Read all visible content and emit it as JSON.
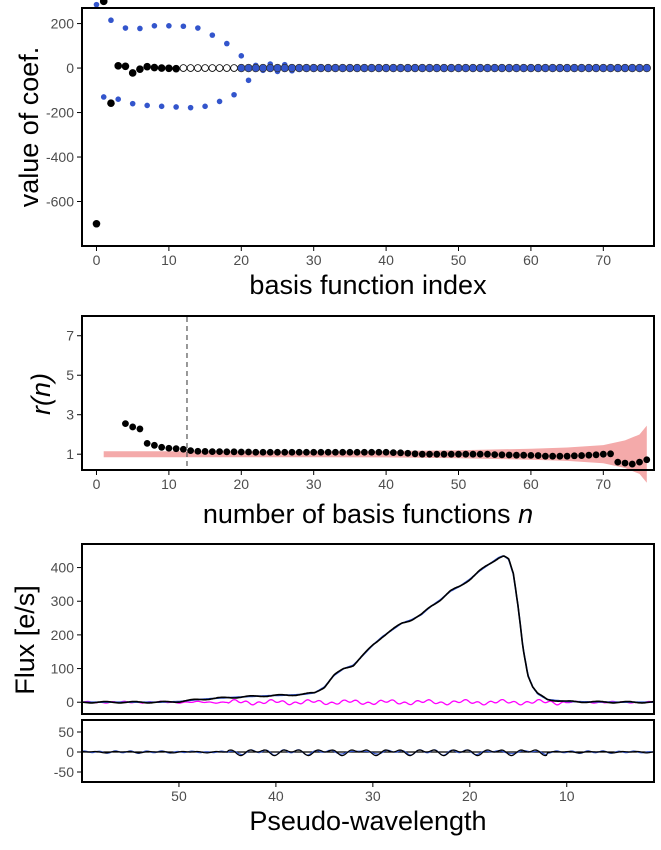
{
  "chart_data": [
    {
      "type": "scatter",
      "xlabel": "basis function index",
      "ylabel": "value of coef.",
      "xlim": [
        -2,
        77
      ],
      "ylim": [
        -800,
        270
      ],
      "xticks": [
        "0",
        "10",
        "20",
        "30",
        "40",
        "50",
        "60",
        "70"
      ],
      "yticks": [
        "200",
        "0",
        "-200",
        "-400",
        "-600"
      ],
      "colors": {
        "black": "#000000",
        "blue": "#3355cc",
        "open": "#ffffff"
      },
      "series": [
        {
          "style": "black",
          "x": [
            0,
            1,
            2,
            3,
            4,
            5,
            6,
            7,
            8,
            9,
            10,
            11
          ],
          "y": [
            -700,
            300,
            -158,
            10,
            8,
            -22,
            -5,
            6,
            2,
            0,
            -1,
            -3
          ]
        },
        {
          "style": "blue_small",
          "x": [
            0,
            2,
            4,
            6,
            8,
            10,
            12,
            14,
            16,
            18,
            20,
            22,
            24,
            26
          ],
          "y": [
            285,
            215,
            180,
            178,
            190,
            190,
            188,
            180,
            148,
            110,
            55,
            12,
            18,
            15
          ]
        },
        {
          "style": "blue_small",
          "x": [
            1,
            3,
            5,
            7,
            9,
            11,
            13,
            15,
            17,
            19,
            21,
            23,
            25,
            27
          ],
          "y": [
            -130,
            -140,
            -160,
            -168,
            -172,
            -175,
            -178,
            -172,
            -150,
            -120,
            -55,
            -10,
            -15,
            -12
          ]
        },
        {
          "style": "open",
          "x": [
            12,
            13,
            14,
            15,
            16,
            17,
            18,
            19,
            20,
            21,
            22,
            23,
            24,
            25,
            26,
            27,
            28,
            29
          ],
          "y": [
            0,
            0,
            0,
            0,
            0,
            0,
            0,
            0,
            0,
            0,
            0,
            0,
            0,
            0,
            0,
            0,
            0,
            0
          ]
        },
        {
          "style": "blue_outline",
          "x_start": 20,
          "x_end": 76,
          "y_const": 0
        }
      ]
    },
    {
      "type": "scatter",
      "xlabel": "number of basis functions",
      "xlabel_italic": "n",
      "ylabel": "r(n)",
      "xlim": [
        -2,
        77
      ],
      "ylim": [
        0.2,
        8
      ],
      "xticks": [
        "0",
        "10",
        "20",
        "30",
        "40",
        "50",
        "60",
        "70"
      ],
      "yticks": [
        "7",
        "5",
        "3",
        "1"
      ],
      "vline_x": 12.5,
      "band_color": "#f4aaaa",
      "band": {
        "x": [
          1,
          10,
          30,
          40,
          50,
          60,
          65,
          70,
          73,
          75,
          76
        ],
        "half_width": [
          0.15,
          0.15,
          0.15,
          0.16,
          0.2,
          0.28,
          0.34,
          0.46,
          0.7,
          1.0,
          1.45
        ]
      },
      "points": {
        "x": [
          4,
          5,
          6,
          7,
          8,
          9,
          10,
          11,
          12,
          13,
          14,
          15,
          16,
          17,
          18,
          19,
          20,
          21,
          22,
          23,
          24,
          25,
          26,
          27,
          28,
          29,
          30,
          31,
          32,
          33,
          34,
          35,
          36,
          37,
          38,
          39,
          40,
          41,
          42,
          43,
          44,
          45,
          46,
          47,
          48,
          49,
          50,
          51,
          52,
          53,
          54,
          55,
          56,
          57,
          58,
          59,
          60,
          61,
          62,
          63,
          64,
          65,
          66,
          67,
          68,
          69,
          70,
          71,
          72,
          73,
          74,
          75,
          76
        ],
        "y": [
          2.55,
          2.38,
          2.28,
          1.55,
          1.45,
          1.35,
          1.3,
          1.28,
          1.25,
          1.18,
          1.15,
          1.14,
          1.13,
          1.13,
          1.12,
          1.12,
          1.11,
          1.11,
          1.1,
          1.1,
          1.1,
          1.1,
          1.1,
          1.1,
          1.1,
          1.1,
          1.1,
          1.1,
          1.1,
          1.1,
          1.1,
          1.1,
          1.1,
          1.1,
          1.1,
          1.1,
          1.1,
          1.08,
          1.07,
          1.05,
          1.02,
          1.0,
          1.0,
          1.0,
          1.0,
          1.0,
          1.0,
          1.0,
          1.0,
          1.0,
          1.0,
          0.98,
          0.97,
          0.96,
          0.95,
          0.95,
          0.94,
          0.93,
          0.9,
          0.9,
          0.9,
          0.9,
          0.92,
          0.93,
          0.95,
          0.97,
          1.0,
          1.02,
          0.6,
          0.55,
          0.5,
          0.6,
          0.72
        ]
      }
    },
    {
      "type": "line",
      "xlabel": "Pseudo-wavelength",
      "ylabel": "Flux [e/s]",
      "x_reversed": true,
      "xlim": [
        60,
        1
      ],
      "ylim": [
        -35,
        470
      ],
      "resid_ylim": [
        -75,
        80
      ],
      "xticks": [
        "50",
        "40",
        "30",
        "20",
        "10"
      ],
      "yticks": [
        "400",
        "300",
        "200",
        "100",
        "0"
      ],
      "resid_yticks": [
        "50",
        "0",
        "-50"
      ],
      "colors": {
        "flux": "#000000",
        "model": "#3355cc",
        "noise": "#ff00ff",
        "residual": "#000000"
      },
      "flux": {
        "x": [
          60,
          55,
          52,
          50,
          48,
          46,
          44,
          42,
          40,
          38,
          37,
          36,
          35,
          34,
          33,
          32,
          31,
          30,
          29,
          28,
          27,
          26,
          25,
          24,
          23,
          22,
          21,
          20,
          19,
          18,
          17,
          16.5,
          16,
          15.5,
          15,
          14.5,
          14,
          13.5,
          13,
          12,
          10,
          5,
          1
        ],
        "y": [
          0,
          0,
          0,
          2,
          8,
          12,
          15,
          18,
          20,
          22,
          24,
          28,
          45,
          80,
          100,
          110,
          140,
          170,
          195,
          215,
          235,
          245,
          260,
          285,
          305,
          330,
          345,
          365,
          390,
          410,
          430,
          435,
          425,
          380,
          280,
          160,
          80,
          45,
          25,
          8,
          2,
          0,
          0
        ]
      },
      "noise_amp": 8,
      "resid_amp": 9
    }
  ]
}
